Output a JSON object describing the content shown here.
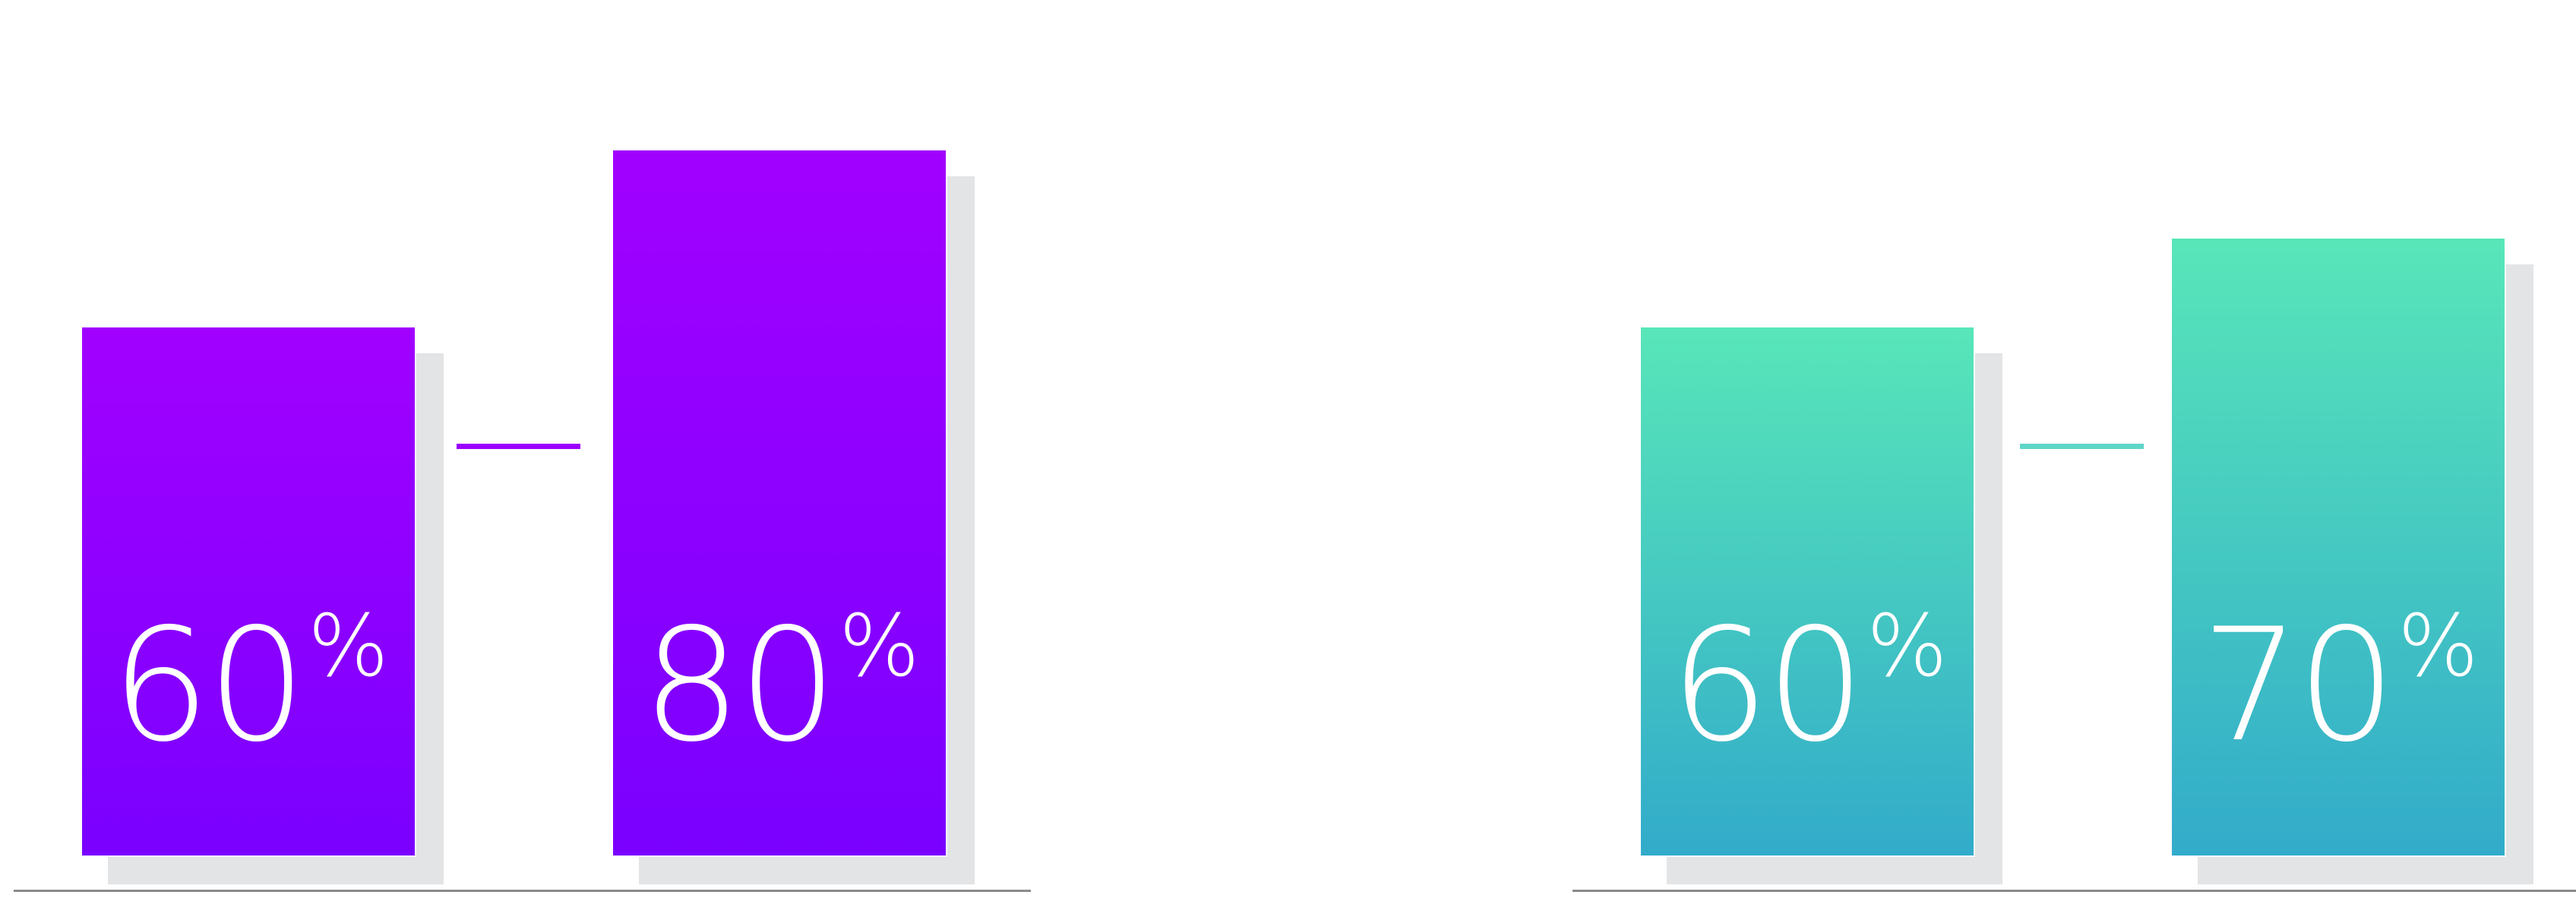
{
  "chart_data": [
    {
      "type": "bar",
      "categories": [
        "",
        ""
      ],
      "values": [
        60,
        80
      ],
      "value_labels": [
        "60",
        "80"
      ],
      "unit": "%",
      "ylim": [
        0,
        100
      ],
      "grid": false,
      "colors": {
        "gradient_top": "#a100ff",
        "gradient_bottom": "#7a00ff",
        "connector": "#9b00ff",
        "shadow": "#e3e4e5",
        "baseline": "#8a8a8a"
      }
    },
    {
      "type": "bar",
      "categories": [
        "",
        ""
      ],
      "values": [
        60,
        70
      ],
      "value_labels": [
        "60",
        "70"
      ],
      "unit": "%",
      "ylim": [
        0,
        100
      ],
      "grid": false,
      "colors": {
        "gradient_top": "#58e6b9",
        "gradient_bottom": "#32abca",
        "connector": "#5fd6c8",
        "shadow": "#e3e4e5",
        "baseline": "#8a8a8a"
      }
    }
  ]
}
